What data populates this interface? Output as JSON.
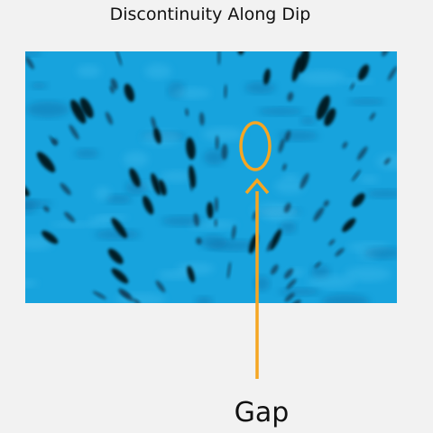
{
  "title": "Discontinuity Along Dip",
  "annotation": "Gap"
}
